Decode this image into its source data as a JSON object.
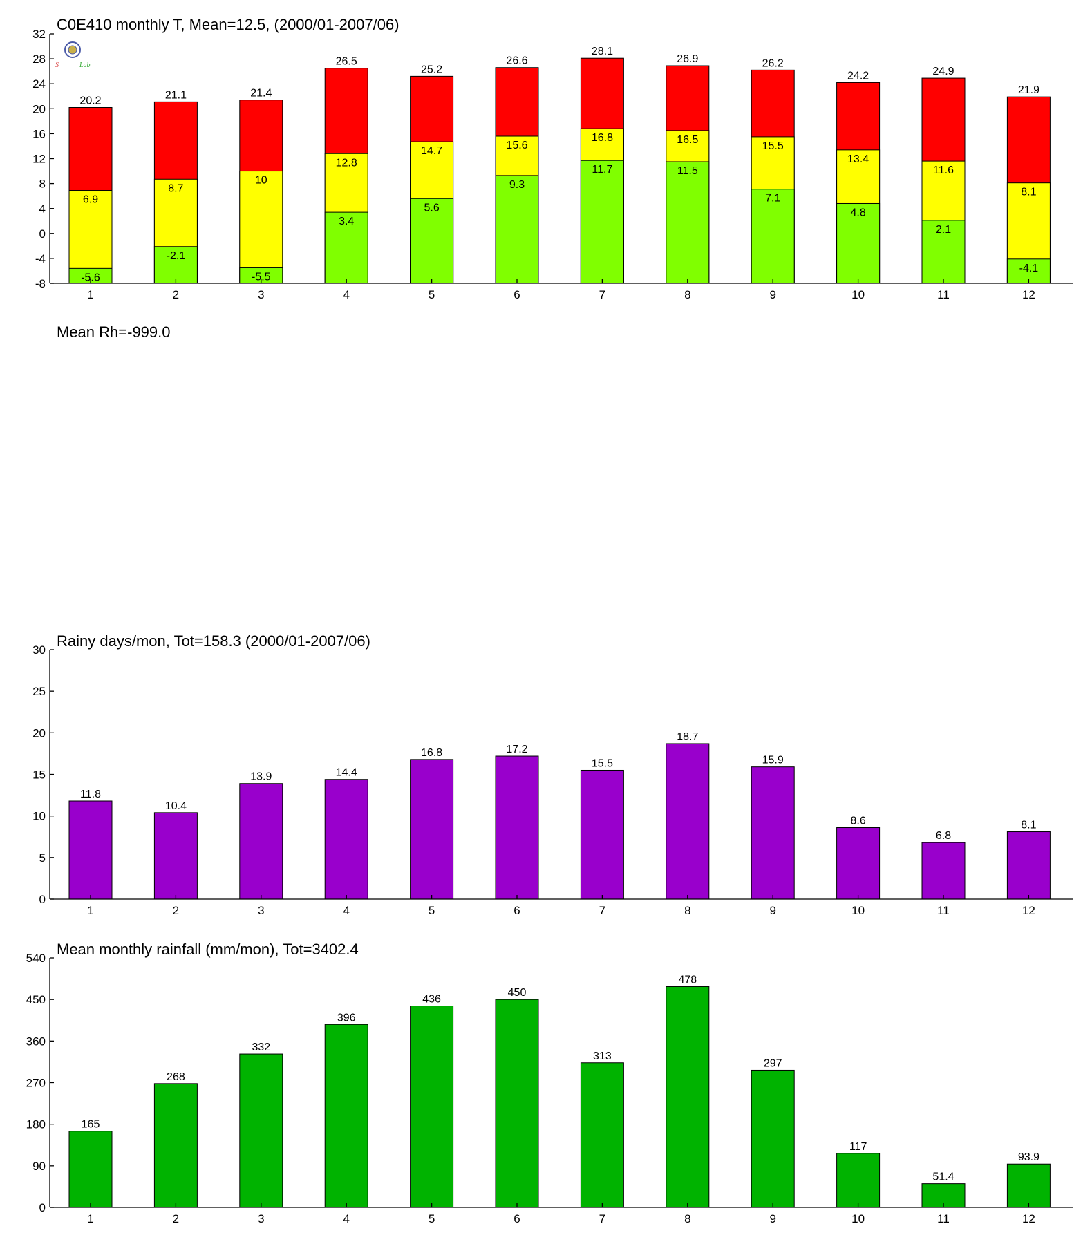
{
  "colors": {
    "max_bar": "#ff0000",
    "mean_bar": "#ffff00",
    "min_bar": "#80ff00",
    "rainy_days_bar": "#9900cc",
    "rainfall_bar": "#00b300"
  },
  "logo": {
    "text": "Lab",
    "icon": "seal-logo-icon"
  },
  "rh_title": "Mean Rh=-999.0",
  "chart_data": [
    {
      "type": "bar",
      "title": "C0E410 monthly T, Mean=12.5, (2000/01-2007/06)",
      "categories": [
        "1",
        "2",
        "3",
        "4",
        "5",
        "6",
        "7",
        "8",
        "9",
        "10",
        "11",
        "12"
      ],
      "ylim": [
        -8,
        32
      ],
      "yticks": [
        -8,
        -4,
        0,
        4,
        8,
        12,
        16,
        20,
        24,
        28,
        32
      ],
      "series": [
        {
          "key": "max",
          "values": [
            20.2,
            21.1,
            21.4,
            26.5,
            25.2,
            26.6,
            28.1,
            26.9,
            26.2,
            24.2,
            24.9,
            21.9
          ],
          "labels": [
            "20.2",
            "21.1",
            "21.4",
            "26.5",
            "25.2",
            "26.6",
            "28.1",
            "26.9",
            "26.2",
            "24.2",
            "24.9",
            "21.9"
          ]
        },
        {
          "key": "mean",
          "values": [
            6.9,
            8.7,
            10,
            12.8,
            14.7,
            15.6,
            16.8,
            16.5,
            15.5,
            13.4,
            11.6,
            8.1
          ],
          "labels": [
            "6.9",
            "8.7",
            "10",
            "12.8",
            "14.7",
            "15.6",
            "16.8",
            "16.5",
            "15.5",
            "13.4",
            "11.6",
            "8.1"
          ]
        },
        {
          "key": "min",
          "values": [
            -5.6,
            -2.1,
            -5.5,
            3.4,
            5.6,
            9.3,
            11.7,
            11.5,
            7.1,
            4.8,
            2.1,
            -4.1
          ],
          "labels": [
            "-5.6",
            "-2.1",
            "-5.5",
            "3.4",
            "5.6",
            "9.3",
            "11.7",
            "11.5",
            "7.1",
            "4.8",
            "2.1",
            "-4.1"
          ]
        }
      ],
      "grid": false
    },
    {
      "type": "bar",
      "title": "Rainy days/mon, Tot=158.3 (2000/01-2007/06)",
      "categories": [
        "1",
        "2",
        "3",
        "4",
        "5",
        "6",
        "7",
        "8",
        "9",
        "10",
        "11",
        "12"
      ],
      "ylim": [
        0,
        30
      ],
      "yticks": [
        0,
        5,
        10,
        15,
        20,
        25,
        30
      ],
      "values": [
        11.8,
        10.4,
        13.9,
        14.4,
        16.8,
        17.2,
        15.5,
        18.7,
        15.9,
        8.6,
        6.8,
        8.1
      ],
      "labels": [
        "11.8",
        "10.4",
        "13.9",
        "14.4",
        "16.8",
        "17.2",
        "15.5",
        "18.7",
        "15.9",
        "8.6",
        "6.8",
        "8.1"
      ],
      "grid": false
    },
    {
      "type": "bar",
      "title": "Mean monthly rainfall (mm/mon), Tot=3402.4",
      "categories": [
        "1",
        "2",
        "3",
        "4",
        "5",
        "6",
        "7",
        "8",
        "9",
        "10",
        "11",
        "12"
      ],
      "ylim": [
        0,
        540
      ],
      "yticks": [
        0,
        90,
        180,
        270,
        360,
        450,
        540
      ],
      "values": [
        165,
        268,
        332,
        396,
        436,
        450,
        313,
        478,
        297,
        117,
        51.4,
        93.9
      ],
      "labels": [
        "165",
        "268",
        "332",
        "396",
        "436",
        "450",
        "313",
        "478",
        "297",
        "117",
        "51.4",
        "93.9"
      ],
      "grid": false
    }
  ]
}
